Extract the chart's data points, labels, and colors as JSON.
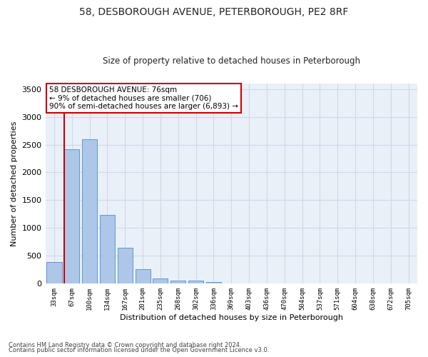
{
  "title": "58, DESBOROUGH AVENUE, PETERBOROUGH, PE2 8RF",
  "subtitle": "Size of property relative to detached houses in Peterborough",
  "xlabel": "Distribution of detached houses by size in Peterborough",
  "ylabel": "Number of detached properties",
  "footer1": "Contains HM Land Registry data © Crown copyright and database right 2024.",
  "footer2": "Contains public sector information licensed under the Open Government Licence v3.0.",
  "categories": [
    "33sqm",
    "67sqm",
    "100sqm",
    "134sqm",
    "167sqm",
    "201sqm",
    "235sqm",
    "268sqm",
    "302sqm",
    "336sqm",
    "369sqm",
    "403sqm",
    "436sqm",
    "470sqm",
    "504sqm",
    "537sqm",
    "571sqm",
    "604sqm",
    "638sqm",
    "672sqm",
    "705sqm"
  ],
  "values": [
    390,
    2420,
    2600,
    1240,
    640,
    255,
    95,
    60,
    55,
    35,
    0,
    0,
    0,
    0,
    0,
    0,
    0,
    0,
    0,
    0,
    0
  ],
  "bar_color": "#aec6e8",
  "bar_edge_color": "#5b9bd5",
  "grid_color": "#d0d8e8",
  "bg_color": "#eaf0f8",
  "annotation_line1": "58 DESBOROUGH AVENUE: 76sqm",
  "annotation_line2": "← 9% of detached houses are smaller (706)",
  "annotation_line3": "90% of semi-detached houses are larger (6,893) →",
  "annotation_box_color": "#ffffff",
  "annotation_box_edge": "#cc0000",
  "vline_x": 0.575,
  "vline_color": "#cc0000",
  "ylim": [
    0,
    3600
  ],
  "yticks": [
    0,
    500,
    1000,
    1500,
    2000,
    2500,
    3000,
    3500
  ],
  "title_fontsize": 10,
  "subtitle_fontsize": 8.5
}
